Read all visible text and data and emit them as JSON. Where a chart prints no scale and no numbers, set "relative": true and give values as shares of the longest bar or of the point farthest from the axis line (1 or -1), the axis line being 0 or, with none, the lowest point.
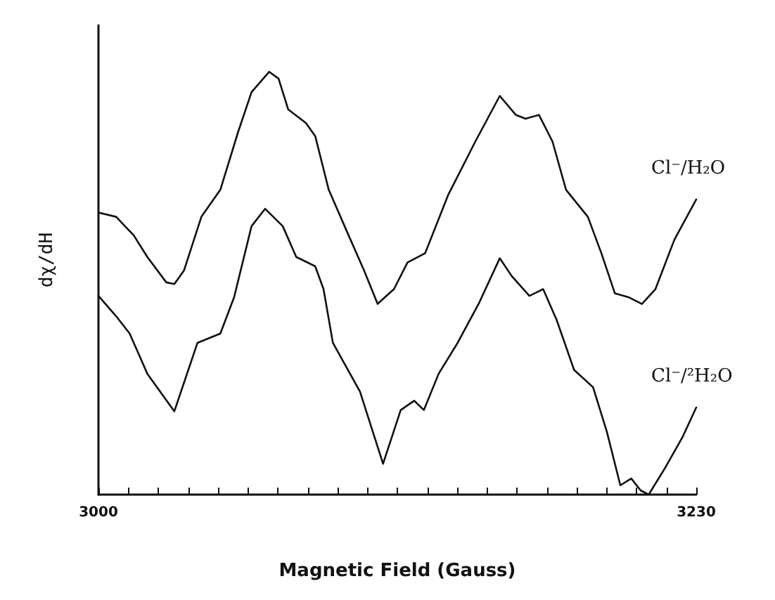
{
  "chart_data": {
    "type": "line",
    "xlabel": "Magnetic Field (Gauss)",
    "ylabel": "dχ/dH",
    "relative": true,
    "xlim": [
      3000,
      3230
    ],
    "xticks": [
      3000,
      {
        "value": 3011.5,
        "label": null
      },
      {
        "value": 3023,
        "label": null
      },
      {
        "value": 3034.5,
        "label": null
      },
      {
        "value": 3046,
        "label": null
      },
      {
        "value": 3057.5,
        "label": null
      },
      {
        "value": 3069,
        "label": null
      },
      {
        "value": 3080.5,
        "label": null
      },
      {
        "value": 3092,
        "label": null
      },
      {
        "value": 3103.5,
        "label": null
      },
      {
        "value": 3115,
        "label": null
      },
      {
        "value": 3126.5,
        "label": null
      },
      {
        "value": 3138,
        "label": null
      },
      {
        "value": 3149.5,
        "label": null
      },
      {
        "value": 3161,
        "label": null
      },
      {
        "value": 3172.5,
        "label": null
      },
      {
        "value": 3184,
        "label": null
      },
      {
        "value": 3195.5,
        "label": null
      },
      {
        "value": 3207,
        "label": null
      },
      {
        "value": 3218.5,
        "label": null
      },
      3230
    ],
    "grid": false,
    "legend": false,
    "marker": "none",
    "line_style": "solid",
    "series": [
      {
        "name": "Cl⁻/H₂O",
        "color": "#111111",
        "x": [
          3000,
          3006.8,
          3013.6,
          3018.8,
          3026.1,
          3029.2,
          3032.9,
          3039.6,
          3046.9,
          3053.7,
          3058.9,
          3065.7,
          3069.3,
          3073,
          3079.8,
          3083.4,
          3088.6,
          3095.4,
          3102.2,
          3107.4,
          3113.7,
          3118.9,
          3125.7,
          3134.5,
          3145,
          3154.4,
          3160.6,
          3164.3,
          3169.5,
          3174.7,
          3179.9,
          3188.3,
          3193.5,
          3198.7,
          3203.9,
          3209.1,
          3214.3,
          3221.6,
          3230
        ],
        "values": [
          0.667,
          0.657,
          0.613,
          0.562,
          0.502,
          0.498,
          0.53,
          0.657,
          0.721,
          0.857,
          0.952,
          1,
          0.984,
          0.911,
          0.879,
          0.848,
          0.721,
          0.625,
          0.53,
          0.451,
          0.486,
          0.549,
          0.571,
          0.708,
          0.835,
          0.943,
          0.898,
          0.889,
          0.898,
          0.835,
          0.721,
          0.657,
          0.571,
          0.476,
          0.467,
          0.451,
          0.486,
          0.603,
          0.698
        ]
      },
      {
        "name": "Cl⁻/²H₂O",
        "color": "#111111",
        "x": [
          3000,
          3006.8,
          3012,
          3018.8,
          3029.2,
          3038.1,
          3046.9,
          3052.2,
          3058.9,
          3064.1,
          3070.9,
          3076.1,
          3083.4,
          3086.6,
          3090.2,
          3100.6,
          3109.5,
          3116.3,
          3121.5,
          3125.2,
          3130.9,
          3138.2,
          3146.5,
          3154.4,
          3159,
          3165.8,
          3171.1,
          3176.3,
          3183,
          3190.3,
          3195.6,
          3200.8,
          3205,
          3208.6,
          3211.7,
          3218,
          3224.8,
          3230
        ],
        "values": [
          0.47,
          0.422,
          0.381,
          0.286,
          0.197,
          0.359,
          0.381,
          0.467,
          0.635,
          0.676,
          0.635,
          0.562,
          0.54,
          0.486,
          0.359,
          0.244,
          0.073,
          0.2,
          0.222,
          0.2,
          0.286,
          0.359,
          0.454,
          0.559,
          0.517,
          0.47,
          0.486,
          0.413,
          0.295,
          0.254,
          0.149,
          0.022,
          0.038,
          0.01,
          0,
          0.063,
          0.137,
          0.206
        ]
      }
    ]
  }
}
